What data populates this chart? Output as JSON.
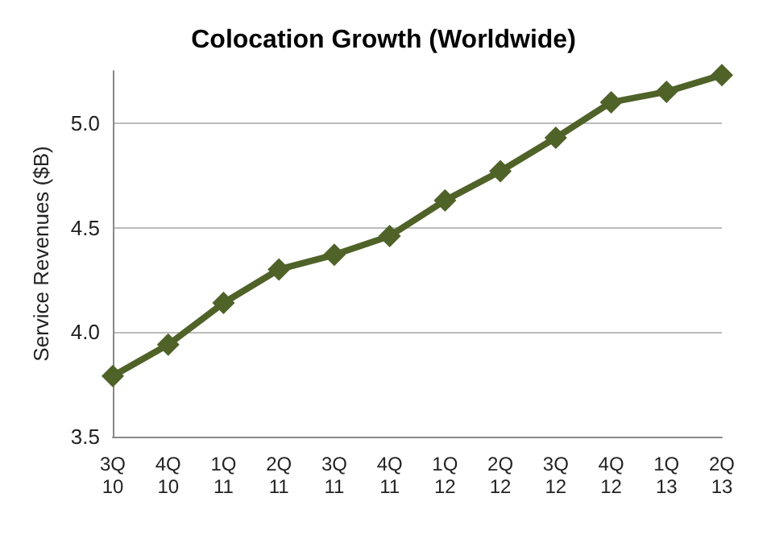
{
  "chart_data": {
    "type": "line",
    "title": "Colocation Growth (Worldwide)",
    "ylabel": "Service Revenues ($B)",
    "categories": [
      "3Q\n10",
      "4Q\n10",
      "1Q\n11",
      "2Q\n11",
      "3Q\n11",
      "4Q\n11",
      "1Q\n12",
      "2Q\n12",
      "3Q\n12",
      "4Q\n12",
      "1Q\n13",
      "2Q\n13"
    ],
    "series": [
      {
        "color": "#4f6228",
        "values": [
          3.79,
          3.94,
          4.14,
          4.3,
          4.37,
          4.46,
          4.63,
          4.77,
          4.93,
          5.1,
          5.15,
          5.23
        ]
      }
    ],
    "ylim": [
      3.5,
      5.25
    ],
    "yticks": [
      {
        "value": 3.5,
        "label": "3.5"
      },
      {
        "value": 4,
        "label": "4.0"
      },
      {
        "value": 4.5,
        "label": "4.5"
      },
      {
        "value": 5,
        "label": "5.0"
      }
    ],
    "grid": "y",
    "marker": "diamond",
    "line_style": "solid"
  }
}
